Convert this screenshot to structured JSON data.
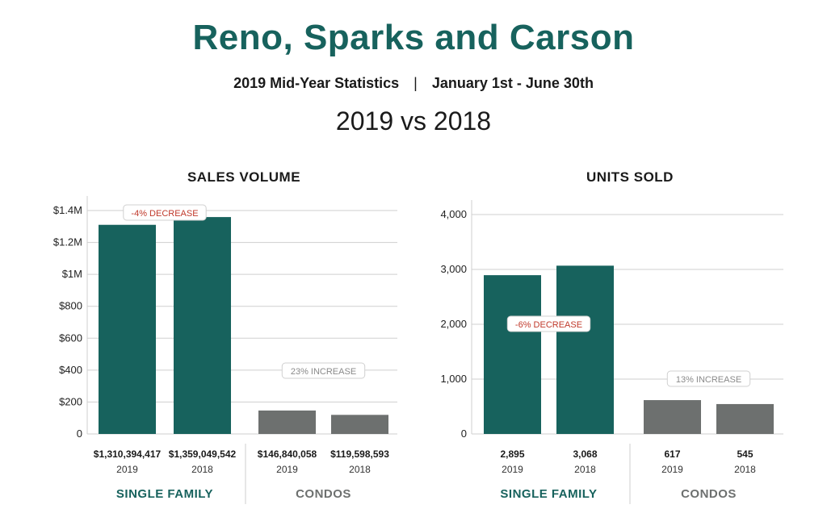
{
  "header": {
    "title": "Reno, Sparks and Carson",
    "subtitle_left": "2019 Mid-Year Statistics",
    "subtitle_sep": "|",
    "subtitle_right": "January 1st - June 30th",
    "comparison": "2019 vs 2018"
  },
  "colors": {
    "single_family": "#17625d",
    "condos": "#6d706f",
    "decrease": "#c0392b",
    "increase": "#8a8a8a"
  },
  "chart_data": [
    {
      "type": "bar",
      "title": "SALES VOLUME",
      "ylim": [
        0,
        1400
      ],
      "yticks": [
        0,
        200,
        400,
        600,
        800,
        1000,
        1200,
        1400
      ],
      "ytick_labels": [
        "0",
        "$200",
        "$400",
        "$600",
        "$800",
        "$1M",
        "$1.2M",
        "$1.4M"
      ],
      "grid": true,
      "groups": [
        {
          "name": "SINGLE FAMILY",
          "color_key": "single_family",
          "annotation": "-4% DECREASE",
          "annotation_type": "decrease",
          "bars": [
            {
              "year": "2019",
              "value": 1310.394417,
              "label": "$1,310,394,417"
            },
            {
              "year": "2018",
              "value": 1359.049542,
              "label": "$1,359,049,542"
            }
          ]
        },
        {
          "name": "CONDOS",
          "color_key": "condos",
          "annotation": "23% INCREASE",
          "annotation_type": "increase",
          "bars": [
            {
              "year": "2019",
              "value": 146.840058,
              "label": "$146,840,058"
            },
            {
              "year": "2018",
              "value": 119.598593,
              "label": "$119,598,593"
            }
          ]
        }
      ]
    },
    {
      "type": "bar",
      "title": "UNITS SOLD",
      "ylim": [
        0,
        4000
      ],
      "yticks": [
        0,
        1000,
        2000,
        3000,
        4000
      ],
      "ytick_labels": [
        "0",
        "1,000",
        "2,000",
        "3,000",
        "4,000"
      ],
      "grid": true,
      "groups": [
        {
          "name": "SINGLE FAMILY",
          "color_key": "single_family",
          "annotation": "-6% DECREASE",
          "annotation_type": "decrease",
          "bars": [
            {
              "year": "2019",
              "value": 2895,
              "label": "2,895"
            },
            {
              "year": "2018",
              "value": 3068,
              "label": "3,068"
            }
          ]
        },
        {
          "name": "CONDOS",
          "color_key": "condos",
          "annotation": "13% INCREASE",
          "annotation_type": "increase",
          "bars": [
            {
              "year": "2019",
              "value": 617,
              "label": "617"
            },
            {
              "year": "2018",
              "value": 545,
              "label": "545"
            }
          ]
        }
      ]
    }
  ]
}
